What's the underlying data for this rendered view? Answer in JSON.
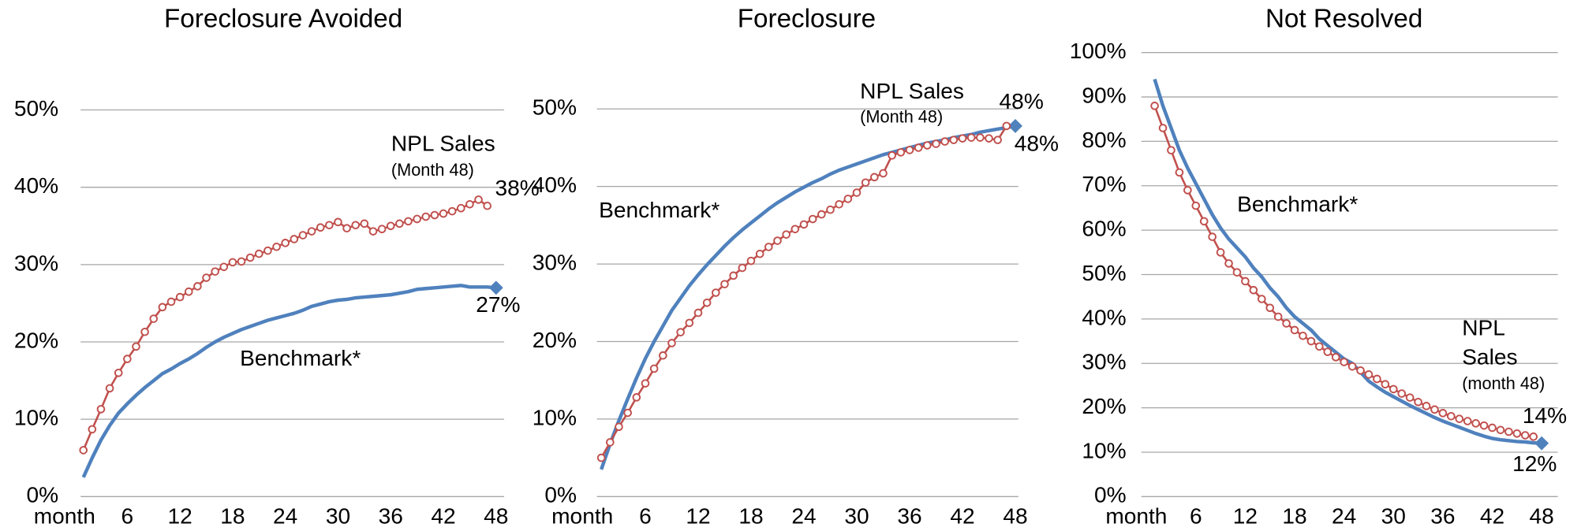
{
  "chart_data": [
    {
      "type": "line",
      "title": "Foreclosure Avoided",
      "x": [
        1,
        2,
        3,
        4,
        5,
        6,
        7,
        8,
        9,
        10,
        11,
        12,
        13,
        14,
        15,
        16,
        17,
        18,
        19,
        20,
        21,
        22,
        23,
        24,
        25,
        26,
        27,
        28,
        29,
        30,
        31,
        32,
        33,
        34,
        35,
        36,
        37,
        38,
        39,
        40,
        41,
        42,
        43,
        44,
        45,
        46,
        47,
        48
      ],
      "xlim": [
        0,
        48
      ],
      "xticks": [
        {
          "value": 0,
          "label": "month"
        },
        6,
        12,
        18,
        24,
        30,
        36,
        42,
        48
      ],
      "ylim": [
        0,
        50
      ],
      "yticks": [
        {
          "value": 0,
          "label": "0%"
        },
        {
          "value": 10,
          "label": "10%"
        },
        {
          "value": 20,
          "label": "20%"
        },
        {
          "value": 30,
          "label": "30%"
        },
        {
          "value": 40,
          "label": "40%"
        },
        {
          "value": 50,
          "label": "50%"
        }
      ],
      "grid": true,
      "series": [
        {
          "name": "NPL Sales",
          "color": "#c0504d",
          "markers": true,
          "values": [
            6,
            8.7,
            11.3,
            14,
            16,
            17.8,
            19.4,
            21.3,
            23,
            24.5,
            25.2,
            25.8,
            26.5,
            27.2,
            28.3,
            29.1,
            29.7,
            30.3,
            30.4,
            30.9,
            31.4,
            31.8,
            32.3,
            32.8,
            33.3,
            33.8,
            34.3,
            34.8,
            35.1,
            35.5,
            34.7,
            35.1,
            35.3,
            34.3,
            34.6,
            35,
            35.3,
            35.6,
            35.9,
            36.2,
            36.4,
            36.6,
            36.9,
            37.3,
            37.8,
            38.4,
            37.6,
            null
          ]
        },
        {
          "name": "Benchmark*",
          "color": "#4f81bd",
          "markers": false,
          "values": [
            2.5,
            5,
            7.3,
            9.2,
            10.8,
            12,
            13.1,
            14.1,
            15,
            15.9,
            16.5,
            17.2,
            17.8,
            18.5,
            19.3,
            20,
            20.6,
            21.1,
            21.6,
            22,
            22.4,
            22.8,
            23.1,
            23.4,
            23.7,
            24.1,
            24.6,
            24.9,
            25.2,
            25.4,
            25.5,
            25.7,
            25.8,
            25.9,
            26,
            26.1,
            26.3,
            26.5,
            26.8,
            26.9,
            27,
            27.1,
            27.2,
            27.3,
            27.1,
            27.1,
            27.1,
            27
          ]
        }
      ],
      "annotations": [
        {
          "text": "NPL Sales",
          "color": "#c0504d"
        },
        {
          "text": "(Month 48)",
          "color": "#c0504d"
        },
        {
          "text": "38%",
          "color": "#c0504d"
        },
        {
          "text": "Benchmark*",
          "color": "#4f81bd"
        },
        {
          "text": "27%",
          "color": "#4f81bd"
        }
      ]
    },
    {
      "type": "line",
      "title": "Foreclosure",
      "x": [
        1,
        2,
        3,
        4,
        5,
        6,
        7,
        8,
        9,
        10,
        11,
        12,
        13,
        14,
        15,
        16,
        17,
        18,
        19,
        20,
        21,
        22,
        23,
        24,
        25,
        26,
        27,
        28,
        29,
        30,
        31,
        32,
        33,
        34,
        35,
        36,
        37,
        38,
        39,
        40,
        41,
        42,
        43,
        44,
        45,
        46,
        47,
        48
      ],
      "xlim": [
        0,
        48
      ],
      "xticks": [
        {
          "value": 0,
          "label": "month"
        },
        6,
        12,
        18,
        24,
        30,
        36,
        42,
        48
      ],
      "ylim": [
        0,
        50
      ],
      "yticks": [
        {
          "value": 0,
          "label": "0%"
        },
        {
          "value": 10,
          "label": "10%"
        },
        {
          "value": 20,
          "label": "20%"
        },
        {
          "value": 30,
          "label": "30%"
        },
        {
          "value": 40,
          "label": "40%"
        },
        {
          "value": 50,
          "label": "50%"
        }
      ],
      "grid": true,
      "series": [
        {
          "name": "NPL Sales",
          "color": "#c0504d",
          "markers": true,
          "values": [
            5,
            7,
            9,
            10.8,
            12.8,
            14.6,
            16.5,
            18.2,
            19.8,
            21.2,
            22.4,
            23.7,
            25,
            26.3,
            27.4,
            28.5,
            29.5,
            30.4,
            31.3,
            32.2,
            33,
            33.8,
            34.5,
            35.1,
            35.8,
            36.4,
            37,
            37.7,
            38.4,
            39.2,
            40.5,
            41.2,
            41.7,
            44,
            44.4,
            44.7,
            45,
            45.3,
            45.5,
            45.8,
            46,
            46.2,
            46.3,
            46.3,
            46.2,
            46,
            47.8,
            null
          ]
        },
        {
          "name": "Benchmark*",
          "color": "#4f81bd",
          "markers": false,
          "values": [
            3.5,
            6.8,
            9.8,
            12.6,
            15.3,
            17.8,
            20,
            22,
            24,
            25.6,
            27.2,
            28.6,
            29.9,
            31.1,
            32.3,
            33.4,
            34.4,
            35.3,
            36.2,
            37.1,
            37.9,
            38.6,
            39.3,
            39.9,
            40.5,
            41,
            41.6,
            42.1,
            42.5,
            42.9,
            43.3,
            43.7,
            44.1,
            44.4,
            44.7,
            45,
            45.3,
            45.6,
            45.8,
            46,
            46.3,
            46.5,
            46.7,
            47,
            47.2,
            47.4,
            47.6,
            47.8
          ]
        }
      ],
      "annotations": [
        {
          "text": "NPL Sales",
          "color": "#c0504d"
        },
        {
          "text": "(Month 48)",
          "color": "#c0504d"
        },
        {
          "text": "48%",
          "color": "#c0504d"
        },
        {
          "text": "Benchmark*",
          "color": "#4f81bd"
        },
        {
          "text": "48%",
          "color": "#4f81bd"
        }
      ]
    },
    {
      "type": "line",
      "title": "Not Resolved",
      "x": [
        1,
        2,
        3,
        4,
        5,
        6,
        7,
        8,
        9,
        10,
        11,
        12,
        13,
        14,
        15,
        16,
        17,
        18,
        19,
        20,
        21,
        22,
        23,
        24,
        25,
        26,
        27,
        28,
        29,
        30,
        31,
        32,
        33,
        34,
        35,
        36,
        37,
        38,
        39,
        40,
        41,
        42,
        43,
        44,
        45,
        46,
        47,
        48
      ],
      "xlim": [
        0,
        48
      ],
      "xticks": [
        {
          "value": 0,
          "label": "month"
        },
        6,
        12,
        18,
        24,
        30,
        36,
        42,
        48
      ],
      "ylim": [
        0,
        100
      ],
      "yticks": [
        {
          "value": 0,
          "label": "0%"
        },
        {
          "value": 10,
          "label": "10%"
        },
        {
          "value": 20,
          "label": "20%"
        },
        {
          "value": 30,
          "label": "30%"
        },
        {
          "value": 40,
          "label": "40%"
        },
        {
          "value": 50,
          "label": "50%"
        },
        {
          "value": 60,
          "label": "60%"
        },
        {
          "value": 70,
          "label": "70%"
        },
        {
          "value": 80,
          "label": "80%"
        },
        {
          "value": 90,
          "label": "90%"
        },
        {
          "value": 100,
          "label": "100%"
        }
      ],
      "grid": true,
      "series": [
        {
          "name": "NPL Sales",
          "color": "#c0504d",
          "markers": true,
          "values": [
            88,
            83,
            78,
            73,
            69,
            65.5,
            62,
            58.5,
            55,
            52.5,
            50.5,
            48.5,
            46.5,
            44.5,
            42.5,
            40.5,
            39,
            37.5,
            36.2,
            35,
            33.8,
            32.6,
            31.4,
            30.3,
            29.3,
            28.4,
            27.5,
            26.5,
            25.3,
            24.2,
            23.2,
            22.3,
            21.3,
            20.4,
            19.6,
            18.8,
            18.1,
            17.5,
            17,
            16.5,
            16,
            15.5,
            15,
            14.6,
            14.2,
            13.8,
            13.5,
            null
          ]
        },
        {
          "name": "Benchmark*",
          "color": "#4f81bd",
          "markers": false,
          "values": [
            94,
            88,
            83,
            78,
            74,
            70.5,
            67,
            63.5,
            60.5,
            58,
            56,
            54,
            51.5,
            49.5,
            47,
            45,
            42.5,
            40.5,
            39,
            37.5,
            35.5,
            34,
            32.5,
            31,
            30,
            28,
            26,
            24.7,
            23.5,
            22.5,
            21.5,
            20.5,
            19.6,
            18.7,
            17.8,
            17,
            16.3,
            15.6,
            14.9,
            14.2,
            13.6,
            13.1,
            12.8,
            12.6,
            12.4,
            12.3,
            12.1,
            12
          ]
        }
      ],
      "annotations": [
        {
          "text": "Benchmark*",
          "color": "#4f81bd"
        },
        {
          "text": "NPL",
          "color": "#c0504d"
        },
        {
          "text": "Sales",
          "color": "#c0504d"
        },
        {
          "text": "(month 48)",
          "color": "#c0504d"
        },
        {
          "text": "14%",
          "color": "#c0504d"
        },
        {
          "text": "12%",
          "color": "#4f81bd"
        }
      ]
    }
  ]
}
